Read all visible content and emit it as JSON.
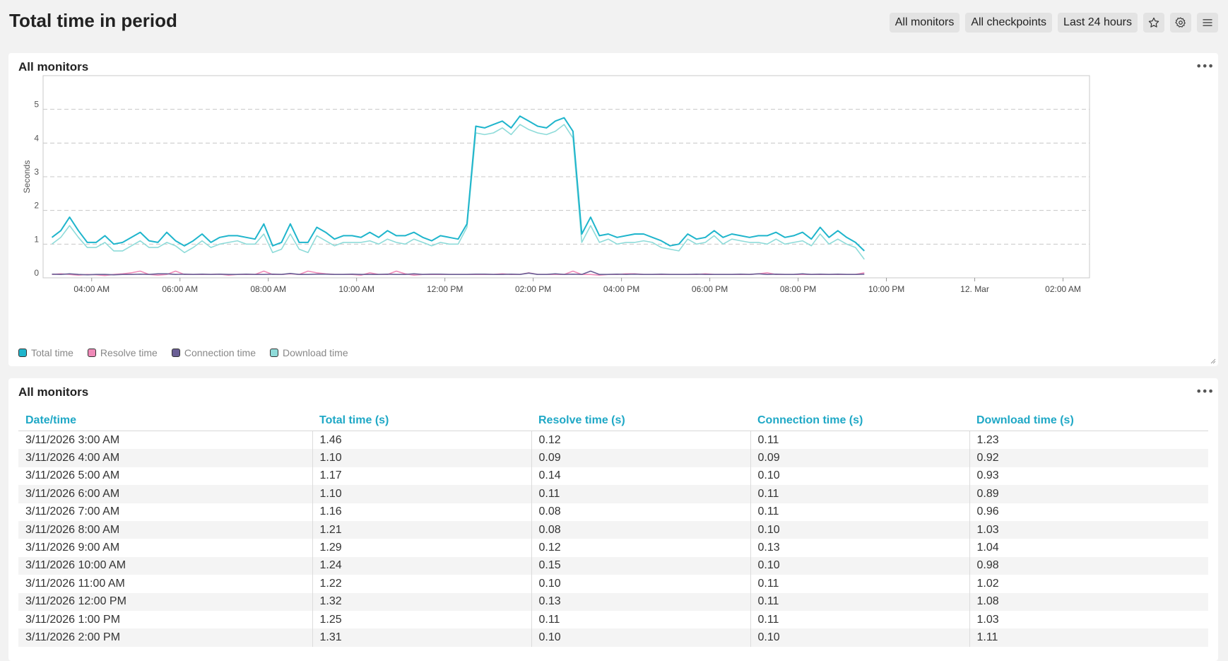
{
  "page": {
    "title": "Total time in period"
  },
  "filters": {
    "monitors": "All monitors",
    "checkpoints": "All checkpoints",
    "period": "Last 24 hours"
  },
  "header_icons": [
    "star-icon",
    "gear-icon",
    "hamburger-menu-icon"
  ],
  "chart_card": {
    "title": "All monitors",
    "menu_label": "•••"
  },
  "table_card": {
    "title": "All monitors",
    "menu_label": "•••"
  },
  "colors": {
    "total": "#1fb5cc",
    "resolve": "#ef8ab8",
    "connection": "#6a5f95",
    "download": "#8edbd9",
    "header_accent": "#1fa8c6"
  },
  "legend": [
    {
      "label": "Total time",
      "color": "#1fb5cc"
    },
    {
      "label": "Resolve time",
      "color": "#ef8ab8"
    },
    {
      "label": "Connection time",
      "color": "#6a5f95"
    },
    {
      "label": "Download time",
      "color": "#8edbd9"
    }
  ],
  "chart_data": {
    "type": "line",
    "ylabel": "Seconds",
    "xlabel": "",
    "ylim": [
      0,
      6
    ],
    "y_ticks": [
      0,
      1,
      2,
      3,
      4,
      5
    ],
    "x_tick_labels": [
      "04:00 AM",
      "06:00 AM",
      "08:00 AM",
      "10:00 AM",
      "12:00 PM",
      "02:00 PM",
      "04:00 PM",
      "06:00 PM",
      "08:00 PM",
      "10:00 PM",
      "12. Mar",
      "02:00 AM"
    ],
    "x_tick_hours": [
      4,
      6,
      8,
      10,
      12,
      14,
      16,
      18,
      20,
      22,
      24,
      26
    ],
    "x_range_hours": [
      2.9,
      26.6
    ],
    "grid": "horizontal-dashed",
    "legend_position": "bottom-left",
    "x_start_hour": 3.1,
    "x_step_hours": 0.2,
    "series": [
      {
        "name": "Total time",
        "values": [
          1.2,
          1.4,
          1.8,
          1.4,
          1.05,
          1.05,
          1.25,
          1.0,
          1.05,
          1.2,
          1.35,
          1.1,
          1.05,
          1.35,
          1.1,
          0.95,
          1.1,
          1.3,
          1.05,
          1.2,
          1.25,
          1.25,
          1.2,
          1.15,
          1.6,
          0.95,
          1.05,
          1.6,
          1.05,
          1.05,
          1.5,
          1.35,
          1.15,
          1.25,
          1.25,
          1.2,
          1.35,
          1.2,
          1.4,
          1.25,
          1.25,
          1.35,
          1.2,
          1.1,
          1.25,
          1.2,
          1.15,
          1.6,
          4.5,
          4.45,
          4.55,
          4.65,
          4.45,
          4.8,
          4.65,
          4.5,
          4.45,
          4.65,
          4.75,
          4.35,
          1.3,
          1.8,
          1.25,
          1.3,
          1.2,
          1.25,
          1.3,
          1.3,
          1.2,
          1.1,
          0.95,
          1.0,
          1.3,
          1.15,
          1.2,
          1.4,
          1.2,
          1.3,
          1.25,
          1.2,
          1.25,
          1.25,
          1.35,
          1.2,
          1.25,
          1.35,
          1.15,
          1.5,
          1.2,
          1.4,
          1.2,
          1.05,
          0.8
        ]
      },
      {
        "name": "Resolve time",
        "values": [
          0.1,
          0.12,
          0.1,
          0.08,
          0.1,
          0.09,
          0.07,
          0.1,
          0.12,
          0.15,
          0.2,
          0.1,
          0.08,
          0.1,
          0.2,
          0.1,
          0.1,
          0.1,
          0.1,
          0.11,
          0.08,
          0.1,
          0.1,
          0.1,
          0.2,
          0.1,
          0.1,
          0.12,
          0.1,
          0.2,
          0.15,
          0.12,
          0.1,
          0.1,
          0.1,
          0.08,
          0.15,
          0.1,
          0.1,
          0.2,
          0.12,
          0.08,
          0.1,
          0.1,
          0.1,
          0.1,
          0.1,
          0.1,
          0.1,
          0.1,
          0.1,
          0.12,
          0.1,
          0.1,
          0.15,
          0.1,
          0.1,
          0.1,
          0.1,
          0.2,
          0.1,
          0.1,
          0.08,
          0.1,
          0.1,
          0.12,
          0.12,
          0.1,
          0.1,
          0.1,
          0.1,
          0.1,
          0.1,
          0.1,
          0.12,
          0.1,
          0.1,
          0.1,
          0.1,
          0.1,
          0.12,
          0.15,
          0.1,
          0.1,
          0.1,
          0.1,
          0.1,
          0.1,
          0.1,
          0.1,
          0.1,
          0.1,
          0.15
        ]
      },
      {
        "name": "Connection time",
        "values": [
          0.11,
          0.1,
          0.12,
          0.1,
          0.09,
          0.1,
          0.1,
          0.09,
          0.1,
          0.1,
          0.11,
          0.1,
          0.12,
          0.12,
          0.1,
          0.11,
          0.1,
          0.11,
          0.1,
          0.11,
          0.1,
          0.1,
          0.11,
          0.1,
          0.1,
          0.11,
          0.1,
          0.13,
          0.1,
          0.1,
          0.11,
          0.11,
          0.1,
          0.1,
          0.11,
          0.1,
          0.1,
          0.1,
          0.11,
          0.1,
          0.1,
          0.12,
          0.1,
          0.11,
          0.11,
          0.1,
          0.1,
          0.1,
          0.11,
          0.11,
          0.1,
          0.1,
          0.11,
          0.1,
          0.14,
          0.1,
          0.1,
          0.12,
          0.1,
          0.11,
          0.1,
          0.2,
          0.1,
          0.1,
          0.11,
          0.1,
          0.11,
          0.1,
          0.1,
          0.11,
          0.1,
          0.1,
          0.1,
          0.11,
          0.1,
          0.1,
          0.1,
          0.1,
          0.11,
          0.1,
          0.12,
          0.1,
          0.11,
          0.1,
          0.1,
          0.12,
          0.1,
          0.11,
          0.1,
          0.11,
          0.1,
          0.1,
          0.11
        ]
      },
      {
        "name": "Download time",
        "values": [
          1.0,
          1.2,
          1.55,
          1.2,
          0.9,
          0.9,
          1.05,
          0.8,
          0.8,
          0.95,
          1.1,
          0.9,
          0.9,
          1.05,
          0.95,
          0.75,
          0.9,
          1.1,
          0.9,
          1.0,
          1.05,
          1.1,
          1.0,
          1.0,
          1.3,
          0.75,
          0.85,
          1.3,
          0.85,
          0.75,
          1.25,
          1.1,
          0.95,
          1.05,
          1.05,
          1.05,
          1.1,
          1.0,
          1.15,
          1.05,
          1.0,
          1.15,
          1.05,
          0.95,
          1.05,
          1.0,
          1.0,
          1.5,
          4.3,
          4.25,
          4.3,
          4.45,
          4.25,
          4.55,
          4.4,
          4.3,
          4.25,
          4.35,
          4.55,
          4.15,
          1.05,
          1.55,
          1.05,
          1.15,
          1.0,
          1.05,
          1.05,
          1.1,
          1.05,
          0.9,
          0.85,
          0.8,
          1.15,
          1.0,
          1.05,
          1.25,
          1.0,
          1.15,
          1.1,
          1.05,
          1.05,
          1.0,
          1.15,
          1.0,
          1.05,
          1.1,
          0.95,
          1.3,
          1.0,
          1.15,
          1.0,
          0.9,
          0.55
        ]
      }
    ]
  },
  "table": {
    "columns": [
      "Date/time",
      "Total time (s)",
      "Resolve time (s)",
      "Connection time (s)",
      "Download time (s)"
    ],
    "rows": [
      [
        "3/11/2026 3:00 AM",
        "1.46",
        "0.12",
        "0.11",
        "1.23"
      ],
      [
        "3/11/2026 4:00 AM",
        "1.10",
        "0.09",
        "0.09",
        "0.92"
      ],
      [
        "3/11/2026 5:00 AM",
        "1.17",
        "0.14",
        "0.10",
        "0.93"
      ],
      [
        "3/11/2026 6:00 AM",
        "1.10",
        "0.11",
        "0.11",
        "0.89"
      ],
      [
        "3/11/2026 7:00 AM",
        "1.16",
        "0.08",
        "0.11",
        "0.96"
      ],
      [
        "3/11/2026 8:00 AM",
        "1.21",
        "0.08",
        "0.10",
        "1.03"
      ],
      [
        "3/11/2026 9:00 AM",
        "1.29",
        "0.12",
        "0.13",
        "1.04"
      ],
      [
        "3/11/2026 10:00 AM",
        "1.24",
        "0.15",
        "0.10",
        "0.98"
      ],
      [
        "3/11/2026 11:00 AM",
        "1.22",
        "0.10",
        "0.11",
        "1.02"
      ],
      [
        "3/11/2026 12:00 PM",
        "1.32",
        "0.13",
        "0.11",
        "1.08"
      ],
      [
        "3/11/2026 1:00 PM",
        "1.25",
        "0.11",
        "0.11",
        "1.03"
      ],
      [
        "3/11/2026 2:00 PM",
        "1.31",
        "0.10",
        "0.10",
        "1.11"
      ]
    ]
  }
}
